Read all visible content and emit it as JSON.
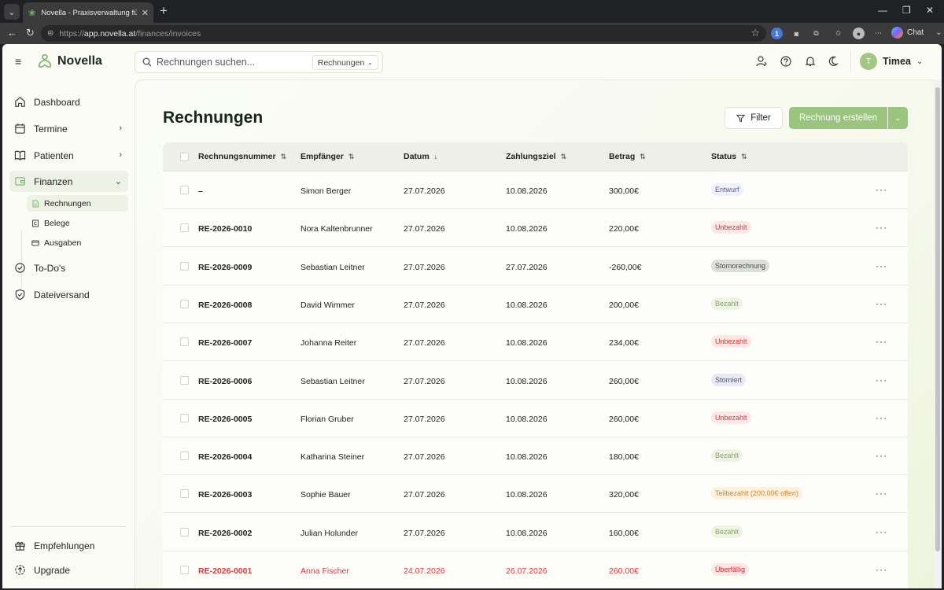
{
  "browser": {
    "tab_title": "Novella - Praxisverwaltung für The",
    "url_prefix": "https://",
    "url_host": "app.novella.at",
    "url_path": "/finances/invoices",
    "chat_label": "Chat"
  },
  "header": {
    "brand": "Novella",
    "search_placeholder": "Rechnungen suchen...",
    "search_scope": "Rechnungen",
    "user_initial": "T",
    "user_name": "Timea"
  },
  "sidebar": {
    "items": [
      {
        "label": "Dashboard"
      },
      {
        "label": "Termine"
      },
      {
        "label": "Patienten"
      },
      {
        "label": "Finanzen"
      },
      {
        "label": "To-Do's"
      },
      {
        "label": "Dateiversand"
      }
    ],
    "sub_items": [
      {
        "label": "Rechnungen"
      },
      {
        "label": "Belege"
      },
      {
        "label": "Ausgaben"
      }
    ],
    "footer": [
      {
        "label": "Empfehlungen"
      },
      {
        "label": "Upgrade"
      }
    ]
  },
  "main": {
    "title": "Rechnungen",
    "filter_label": "Filter",
    "create_label": "Rechnung erstellen"
  },
  "table": {
    "columns": [
      "Rechnungsnummer",
      "Empfänger",
      "Datum",
      "Zahlungsziel",
      "Betrag",
      "Status"
    ],
    "rows": [
      {
        "number": "–",
        "recipient": "Simon Berger",
        "date": "27.07.2026",
        "due": "10.08.2026",
        "amount": "300,00€",
        "status": "Entwurf",
        "status_type": "entwurf"
      },
      {
        "number": "RE-2026-0010",
        "recipient": "Nora Kaltenbrunner",
        "date": "27.07.2026",
        "due": "10.08.2026",
        "amount": "220,00€",
        "status": "Unbezahlt",
        "status_type": "unbezahlt"
      },
      {
        "number": "RE-2026-0009",
        "recipient": "Sebastian Leitner",
        "date": "27.07.2026",
        "due": "27.07.2026",
        "amount": "-260,00€",
        "status": "Stornorechnung",
        "status_type": "storno"
      },
      {
        "number": "RE-2026-0008",
        "recipient": "David Wimmer",
        "date": "27.07.2026",
        "due": "10.08.2026",
        "amount": "200,00€",
        "status": "Bezahlt",
        "status_type": "bezahlt"
      },
      {
        "number": "RE-2026-0007",
        "recipient": "Johanna Reiter",
        "date": "27.07.2026",
        "due": "10.08.2026",
        "amount": "234,00€",
        "status": "Unbezahlt",
        "status_type": "unbezahlt"
      },
      {
        "number": "RE-2026-0006",
        "recipient": "Sebastian Leitner",
        "date": "27.07.2026",
        "due": "10.08.2026",
        "amount": "260,00€",
        "status": "Storniert",
        "status_type": "storniert"
      },
      {
        "number": "RE-2026-0005",
        "recipient": "Florian Gruber",
        "date": "27.07.2026",
        "due": "10.08.2026",
        "amount": "260,00€",
        "status": "Unbezahlt",
        "status_type": "unbezahlt"
      },
      {
        "number": "RE-2026-0004",
        "recipient": "Katharina Steiner",
        "date": "27.07.2026",
        "due": "10.08.2026",
        "amount": "180,00€",
        "status": "Bezahlt",
        "status_type": "bezahlt"
      },
      {
        "number": "RE-2026-0003",
        "recipient": "Sophie Bauer",
        "date": "27.07.2026",
        "due": "10.08.2026",
        "amount": "320,00€",
        "status": "Teilbezahlt (200,00€ offen)",
        "status_type": "teil"
      },
      {
        "number": "RE-2026-0002",
        "recipient": "Julian Holunder",
        "date": "27.07.2026",
        "due": "10.08.2026",
        "amount": "160,00€",
        "status": "Bezahlt",
        "status_type": "bezahlt"
      },
      {
        "number": "RE-2026-0001",
        "recipient": "Anna Fischer",
        "date": "24.07.2026",
        "due": "26.07.2026",
        "amount": "260,00€",
        "status": "Überfällig",
        "status_type": "ueber",
        "overdue": true
      }
    ]
  },
  "colors": {
    "brand_green": "#9bc47e",
    "overdue_red": "#d93a3a"
  }
}
